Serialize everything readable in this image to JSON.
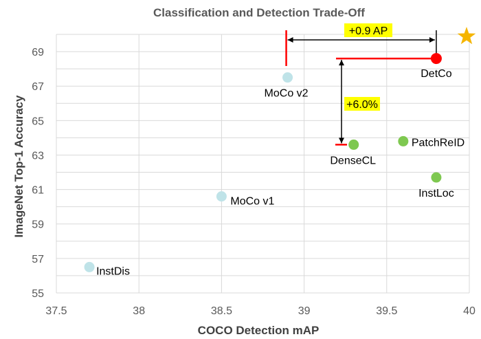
{
  "chart_data": {
    "type": "scatter",
    "title": "Classification and Detection Trade-Off",
    "xlabel": "COCO Detection mAP",
    "ylabel": "ImageNet Top-1 Accuracy",
    "xlim": [
      37.5,
      40
    ],
    "ylim": [
      55,
      70
    ],
    "xticks": [
      37.5,
      38,
      38.5,
      39,
      39.5,
      40
    ],
    "xtick_labels": [
      "37.5",
      "38",
      "38.5",
      "39",
      "39.5",
      "40"
    ],
    "yticks": [
      55,
      57,
      59,
      61,
      63,
      65,
      67,
      69
    ],
    "ytick_labels": [
      "55",
      "57",
      "59",
      "61",
      "63",
      "65",
      "67",
      "69"
    ],
    "grid": true,
    "points": [
      {
        "label": "InstDis",
        "x": 37.7,
        "y": 56.5,
        "color": "#bfe3e8"
      },
      {
        "label": "MoCo v1",
        "x": 38.5,
        "y": 60.6,
        "color": "#bfe3e8"
      },
      {
        "label": "MoCo v2",
        "x": 38.9,
        "y": 67.5,
        "color": "#bfe3e8"
      },
      {
        "label": "DenseCL",
        "x": 39.3,
        "y": 63.6,
        "color": "#7ec850"
      },
      {
        "label": "PatchReID",
        "x": 39.6,
        "y": 63.8,
        "color": "#7ec850"
      },
      {
        "label": "InstLoc",
        "x": 39.8,
        "y": 61.7,
        "color": "#7ec850"
      },
      {
        "label": "DetCo",
        "x": 39.8,
        "y": 68.6,
        "color": "#ff0000"
      }
    ],
    "annotations": [
      {
        "text": "+0.9 AP",
        "highlight": "#ffff00"
      },
      {
        "text": "+6.0%",
        "highlight": "#ffff00"
      }
    ],
    "star_color": "#f5b500",
    "reference_line_color": "#ff0000"
  }
}
